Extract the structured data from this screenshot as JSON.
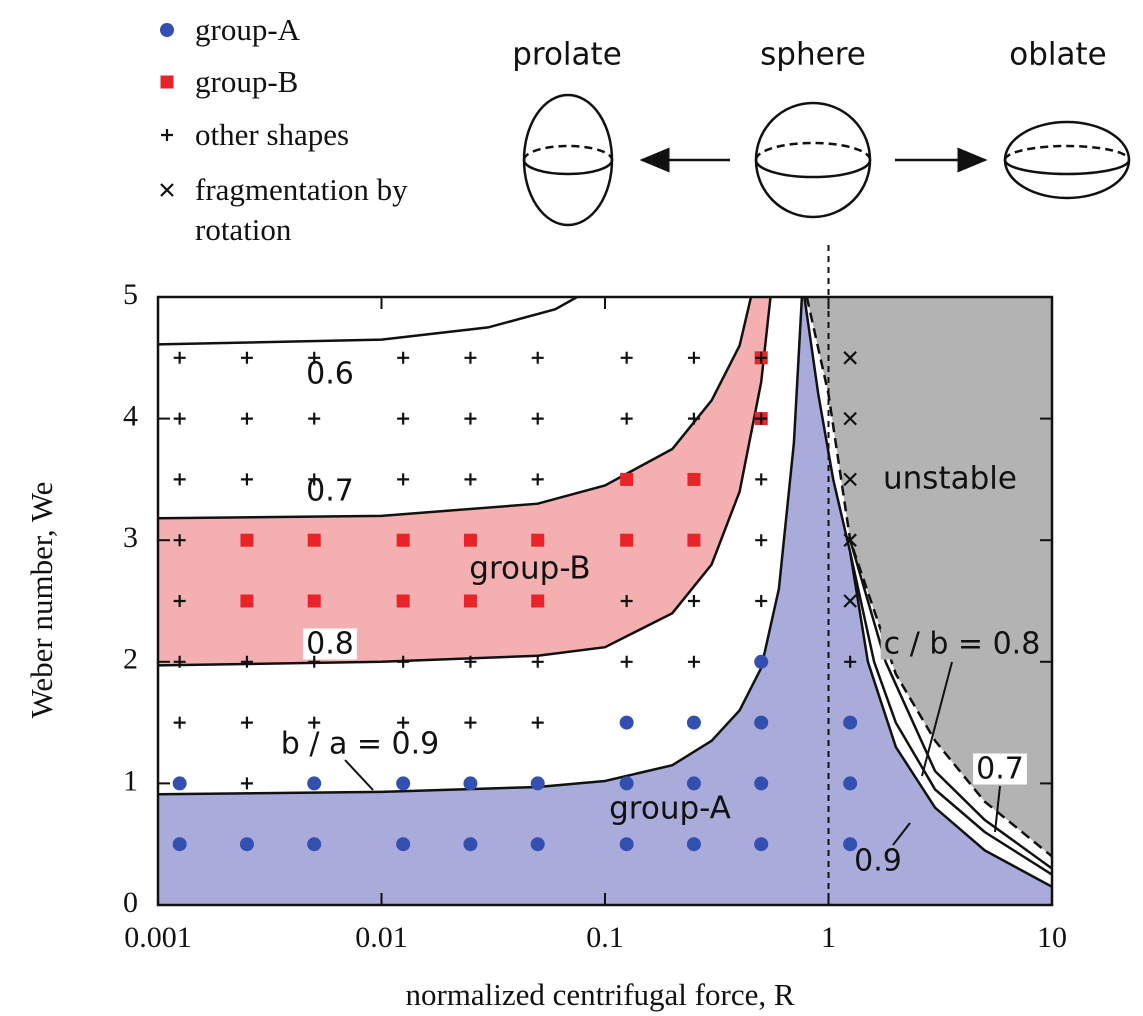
{
  "chart_data": {
    "type": "scatter",
    "x_label": "normalized centrifugal force, R",
    "y_label": "Weber number, We",
    "xscale": "log",
    "xlim": [
      0.001,
      10
    ],
    "ylim": [
      0,
      5
    ],
    "xticks": [
      0.001,
      0.01,
      0.1,
      1,
      10
    ],
    "yticks": [
      0,
      1,
      2,
      3,
      4,
      5
    ],
    "vline": 1,
    "shapes": [
      "prolate",
      "sphere",
      "oblate"
    ],
    "series": [
      {
        "name": "group-A",
        "color": "#3350b0",
        "marker": "circle",
        "x": [
          0.00125,
          0.0025,
          0.005,
          0.0125,
          0.025,
          0.05,
          0.125,
          0.25,
          0.5,
          1.25,
          0.00125,
          0.005,
          0.0125,
          0.025,
          0.05,
          0.125,
          0.25,
          0.5,
          1.25,
          0.125,
          0.25,
          0.5,
          1.25,
          0.5
        ],
        "y": [
          0.5,
          0.5,
          0.5,
          0.5,
          0.5,
          0.5,
          0.5,
          0.5,
          0.5,
          0.5,
          1,
          1,
          1,
          1,
          1,
          1,
          1,
          1,
          1,
          1.5,
          1.5,
          1.5,
          1.5,
          2
        ]
      },
      {
        "name": "group-B",
        "color": "#e8232a",
        "marker": "square",
        "x": [
          0.0025,
          0.005,
          0.0125,
          0.025,
          0.05,
          0.0025,
          0.005,
          0.0125,
          0.025,
          0.05,
          0.125,
          0.25,
          0.125,
          0.25,
          0.5,
          0.5
        ],
        "y": [
          2.5,
          2.5,
          2.5,
          2.5,
          2.5,
          3,
          3,
          3,
          3,
          3,
          3,
          3,
          3.5,
          3.5,
          4,
          4.5
        ]
      },
      {
        "name": "other shapes",
        "color": "#111111",
        "marker": "plus",
        "x": [
          0.0025,
          0.00125,
          0.0025,
          0.005,
          0.0125,
          0.025,
          0.05,
          0.00125,
          0.0025,
          0.005,
          0.0125,
          0.025,
          0.05,
          0.125,
          0.25,
          1.25,
          0.00125,
          0.125,
          0.25,
          0.5,
          0.00125,
          0.5,
          0.00125,
          0.0025,
          0.005,
          0.0125,
          0.025,
          0.05,
          0.5,
          0.00125,
          0.0025,
          0.005,
          0.0125,
          0.025,
          0.05,
          0.125,
          0.25,
          0.5,
          0.00125,
          0.0025,
          0.005,
          0.0125,
          0.025,
          0.05,
          0.125,
          0.25,
          0.5
        ],
        "y": [
          1,
          1.5,
          1.5,
          1.5,
          1.5,
          1.5,
          1.5,
          2,
          2,
          2,
          2,
          2,
          2,
          2,
          2,
          2,
          2.5,
          2.5,
          2.5,
          2.5,
          3,
          3,
          3.5,
          3.5,
          3.5,
          3.5,
          3.5,
          3.5,
          3.5,
          4,
          4,
          4,
          4,
          4,
          4,
          4,
          4,
          4,
          4.5,
          4.5,
          4.5,
          4.5,
          4.5,
          4.5,
          4.5,
          4.5,
          4.5
        ]
      },
      {
        "name": "fragmentation by rotation",
        "color": "#111111",
        "marker": "cross",
        "x": [
          1.25,
          1.25,
          1.25,
          1.25,
          1.25
        ],
        "y": [
          2.5,
          3,
          3.5,
          4,
          4.5
        ]
      }
    ],
    "curves": [
      {
        "label": "0.6",
        "x": [
          0.001,
          0.01,
          0.03,
          0.06,
          0.075
        ],
        "y": [
          4.61,
          4.65,
          4.75,
          4.9,
          5
        ]
      },
      {
        "label": "0.7",
        "x": [
          0.001,
          0.01,
          0.05,
          0.1,
          0.2,
          0.3,
          0.4,
          0.45
        ],
        "y": [
          3.18,
          3.2,
          3.3,
          3.45,
          3.75,
          4.15,
          4.6,
          5
        ]
      },
      {
        "label": "0.8",
        "x": [
          0.001,
          0.01,
          0.05,
          0.1,
          0.2,
          0.3,
          0.4,
          0.5,
          0.55
        ],
        "y": [
          1.97,
          2,
          2.05,
          2.12,
          2.4,
          2.8,
          3.4,
          4.3,
          5
        ]
      },
      {
        "label": "b / a = 0.9",
        "x": [
          0.001,
          0.01,
          0.05,
          0.1,
          0.2,
          0.3,
          0.4,
          0.5,
          0.6,
          0.7,
          0.76
        ],
        "y": [
          0.91,
          0.93,
          0.97,
          1.02,
          1.15,
          1.35,
          1.6,
          1.95,
          2.6,
          3.8,
          5
        ]
      },
      {
        "label": "0.9",
        "x": [
          0.78,
          0.9,
          1.05,
          1.25,
          1.5,
          2,
          3,
          5,
          10
        ],
        "y": [
          5,
          4.2,
          3.5,
          2.9,
          2,
          1.3,
          0.8,
          0.45,
          0.15
        ]
      },
      {
        "label": "c / b = 0.8",
        "x": [
          1.25,
          1.6,
          2,
          3,
          5,
          10
        ],
        "y": [
          2.9,
          2,
          1.5,
          0.95,
          0.6,
          0.25
        ]
      },
      {
        "label": "0.7",
        "x": [
          1.25,
          1.8,
          3,
          5,
          10
        ],
        "y": [
          3,
          2,
          1.1,
          0.7,
          0.3
        ]
      },
      {
        "dashed": true,
        "x": [
          0.8,
          1,
          1.25,
          2,
          3,
          5,
          10
        ],
        "y": [
          5,
          4.2,
          3,
          1.9,
          1.35,
          0.85,
          0.4
        ]
      }
    ],
    "regions": [
      {
        "label": "group-A",
        "color": "#a9abdb"
      },
      {
        "label": "group-B",
        "color": "#f4b0b0"
      },
      {
        "label": "unstable",
        "color": "#b3b3b3"
      }
    ]
  }
}
